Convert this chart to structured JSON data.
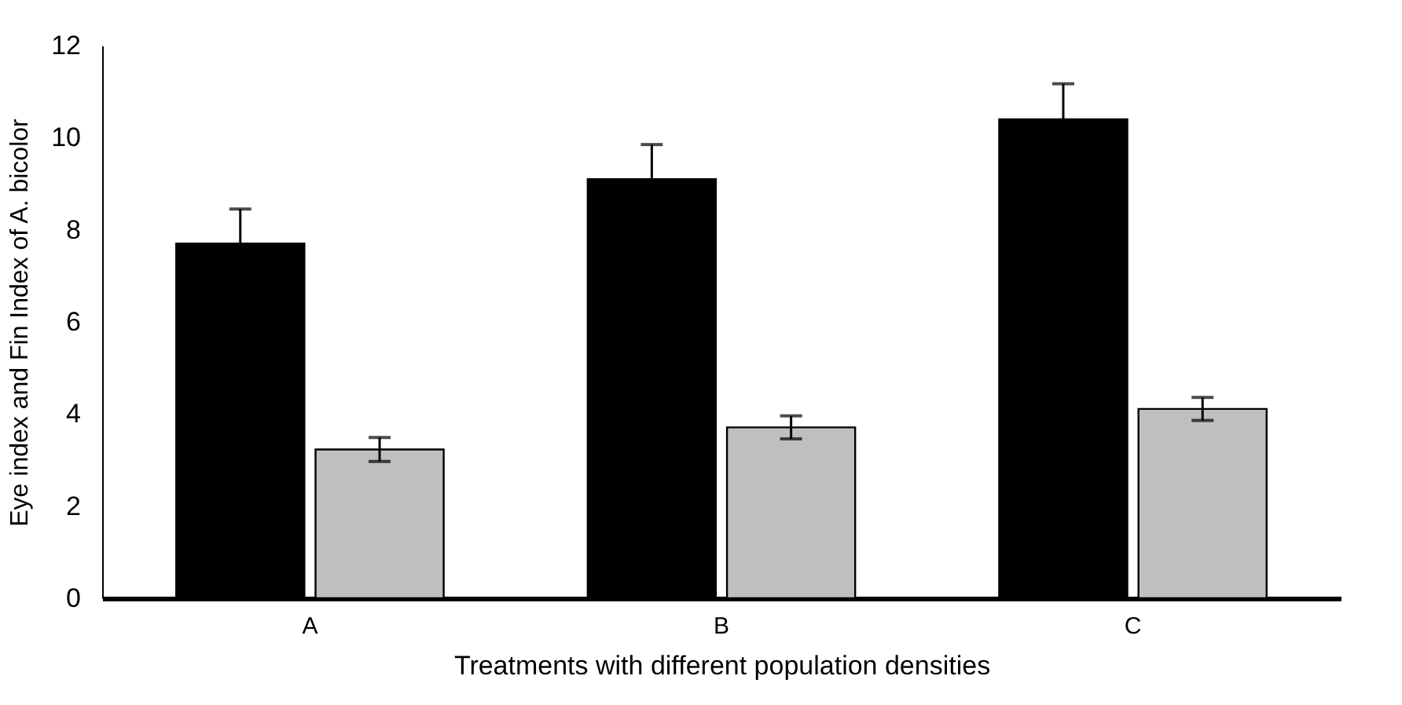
{
  "chart_data": {
    "type": "bar",
    "xlabel": "Treatments with different population densities",
    "ylabel": "Eye index and Fin Index of A. bicolor",
    "categories": [
      "A",
      "B",
      "C"
    ],
    "series": [
      {
        "color": "#000000",
        "values": [
          7.7,
          9.1,
          10.4
        ],
        "errors": [
          0.75,
          0.75,
          0.77
        ]
      },
      {
        "color": "#bfbfbf",
        "values": [
          3.23,
          3.71,
          4.11
        ],
        "errors": [
          0.26,
          0.25,
          0.25
        ]
      }
    ],
    "ylim": [
      0,
      12
    ],
    "yticks": [
      0,
      2,
      4,
      6,
      8,
      10,
      12
    ],
    "grid": false
  }
}
